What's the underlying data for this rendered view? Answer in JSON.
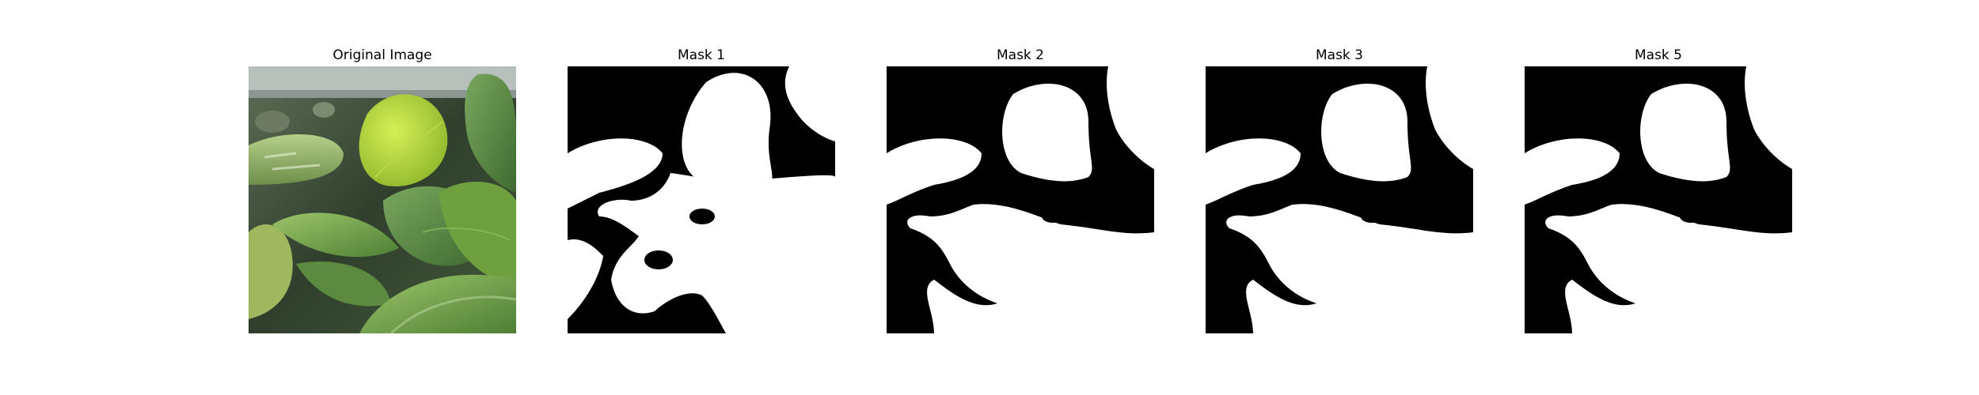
{
  "panels": [
    {
      "title": "Original Image",
      "kind": "photo"
    },
    {
      "title": "Mask 1",
      "kind": "mask"
    },
    {
      "title": "Mask 2",
      "kind": "mask"
    },
    {
      "title": "Mask 3",
      "kind": "mask"
    },
    {
      "title": "Mask 5",
      "kind": "mask"
    }
  ],
  "colors": {
    "mask_fg": "#ffffff",
    "mask_bg": "#000000"
  }
}
